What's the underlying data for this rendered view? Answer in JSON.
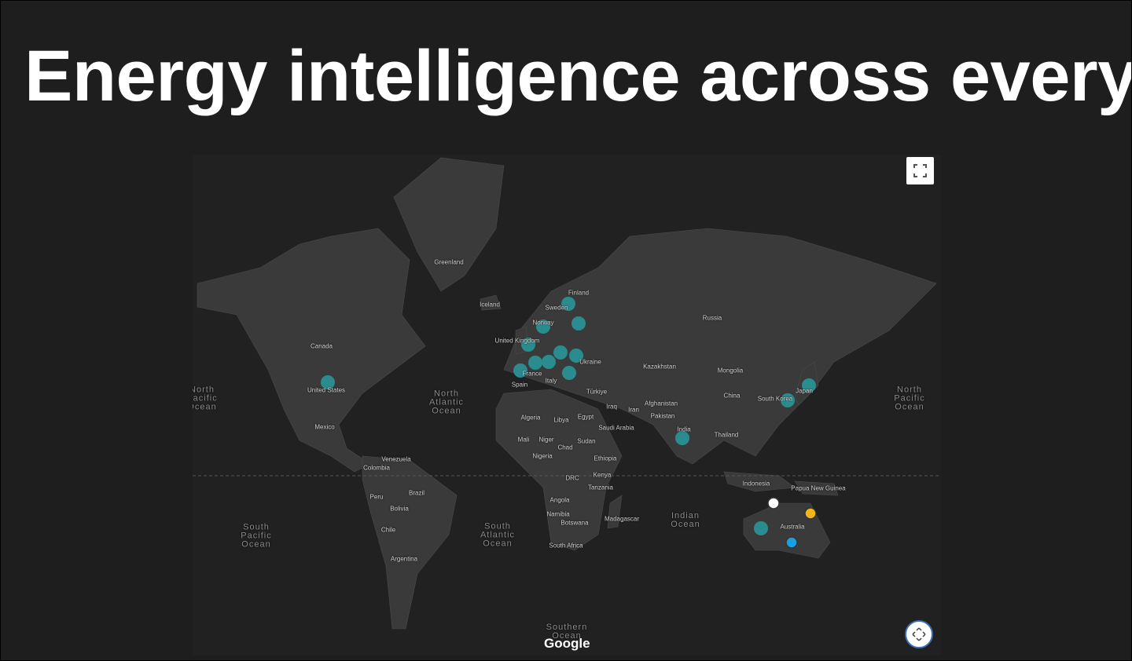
{
  "header": {
    "title": "Energy intelligence across every"
  },
  "map": {
    "labels": [
      "Greenland",
      "Iceland",
      "Finland",
      "Sweden",
      "Norway",
      "United Kingdom",
      "Canada",
      "Russia",
      "Ukraine",
      "Kazakhstan",
      "Mongolia",
      "France",
      "Spain",
      "Italy",
      "Türkiye",
      "United States",
      "North Atlantic Ocean",
      "North Pacific Ocean",
      "North Pacific Ocean",
      "Mexico",
      "Algeria",
      "Libya",
      "Egypt",
      "Iraq",
      "Iran",
      "Afghanistan",
      "Pakistan",
      "China",
      "South Korea",
      "Japan",
      "Saudi Arabia",
      "India",
      "Thailand",
      "Mali",
      "Niger",
      "Chad",
      "Sudan",
      "Ethiopia",
      "Nigeria",
      "Venezuela",
      "Colombia",
      "DRC",
      "Kenya",
      "Tanzania",
      "Indonesia",
      "Papua New Guinea",
      "Peru",
      "Brazil",
      "Bolivia",
      "Angola",
      "Namibia",
      "Botswana",
      "Madagascar",
      "Indian Ocean",
      "Australia",
      "South Pacific Ocean",
      "South Atlantic Ocean",
      "Chile",
      "South Africa",
      "Argentina",
      "Southern Ocean"
    ],
    "attribution": "Google"
  }
}
